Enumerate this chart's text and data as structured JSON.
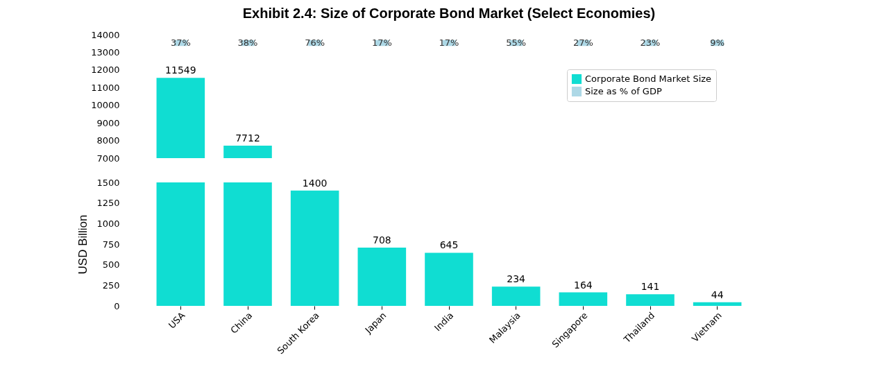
{
  "chart_data": [
    {
      "type": "bar",
      "title": "Exhibit 2.4: Size of Corporate Bond Market (Select Economies)",
      "categories": [
        "USA",
        "China",
        "South Korea",
        "Japan",
        "India",
        "Malaysia",
        "Singapore",
        "Thailand",
        "Vietnam"
      ],
      "series": [
        {
          "name": "Corporate Bond Market Size",
          "color": "#10ddd2",
          "values": [
            11549,
            7712,
            null,
            null,
            null,
            null,
            null,
            null,
            null
          ],
          "value_labels": [
            "11549",
            "7712",
            null,
            null,
            null,
            null,
            null,
            null,
            null
          ]
        },
        {
          "type": "other",
          "name": "Size as % of GDP",
          "color": "#add8e6",
          "values": [
            null,
            null,
            null,
            null,
            null,
            null,
            null,
            null,
            null
          ]
        }
      ],
      "annotations": [
        {
          "text": "37%",
          "x": "USA"
        },
        {
          "text": "38%",
          "x": "China"
        },
        {
          "text": "76%",
          "x": "South Korea"
        },
        {
          "text": "17%",
          "x": "Japan"
        },
        {
          "text": "17%",
          "x": "India"
        },
        {
          "text": "55%",
          "x": "Malaysia"
        },
        {
          "text": "27%",
          "x": "Singapore"
        },
        {
          "text": "23%",
          "x": "Thailand"
        },
        {
          "text": "9%",
          "x": "Vietnam"
        }
      ],
      "ylim": [
        7000,
        14000
      ],
      "yticks": [
        7000,
        8000,
        9000,
        10000,
        11000,
        12000,
        13000,
        14000
      ],
      "tick_labels": "y",
      "legend": "top right"
    },
    {
      "type": "bar",
      "ylabel": "USD Billion",
      "categories": [
        "USA",
        "China",
        "South Korea",
        "Japan",
        "India",
        "Malaysia",
        "Singapore",
        "Thailand",
        "Vietnam"
      ],
      "series": [
        {
          "color": "#10ddd2",
          "values": [
            1500,
            1500,
            1400,
            708,
            645,
            234,
            164,
            141,
            44
          ],
          "value_labels": [
            null,
            null,
            "1400",
            "708",
            "645",
            "234",
            "164",
            "141",
            "44"
          ]
        }
      ],
      "ylim": [
        0,
        1500
      ],
      "yticks": [
        0,
        250,
        500,
        750,
        1000,
        1250,
        1500
      ]
    }
  ]
}
